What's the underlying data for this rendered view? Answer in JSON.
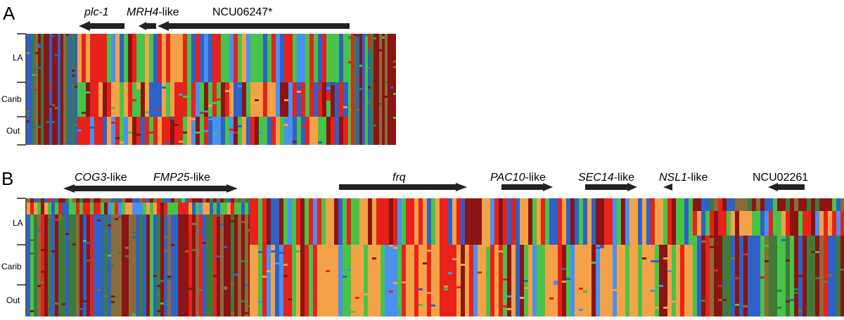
{
  "panels": [
    {
      "letter": "A",
      "genes": [
        {
          "name": "plc-1",
          "suffix": ""
        },
        {
          "name": "MRH4",
          "suffix": "-like"
        },
        {
          "name": "",
          "suffix": "NCU06247*"
        }
      ],
      "groups": [
        "LA",
        "Carib",
        "Out"
      ]
    },
    {
      "letter": "B",
      "genes": [
        {
          "name": "COG3",
          "suffix": "-like"
        },
        {
          "name": "FMP25",
          "suffix": "-like"
        },
        {
          "name": "frq",
          "suffix": ""
        },
        {
          "name": "PAC10",
          "suffix": "-like"
        },
        {
          "name": "SEC14",
          "suffix": "-like"
        },
        {
          "name": "NSL1",
          "suffix": "-like"
        },
        {
          "name": "",
          "suffix": "NCU02261"
        }
      ],
      "groups": [
        "LA",
        "Carib",
        "Out"
      ]
    }
  ],
  "colors": {
    "red": "#e8211b",
    "darkred": "#8b1414",
    "green": "#47c447",
    "darkgreen": "#3e7b3b",
    "blue": "#2f61c6",
    "lightblue": "#4a90f0",
    "orange": "#f4a247",
    "olive": "#8c6b3a"
  }
}
